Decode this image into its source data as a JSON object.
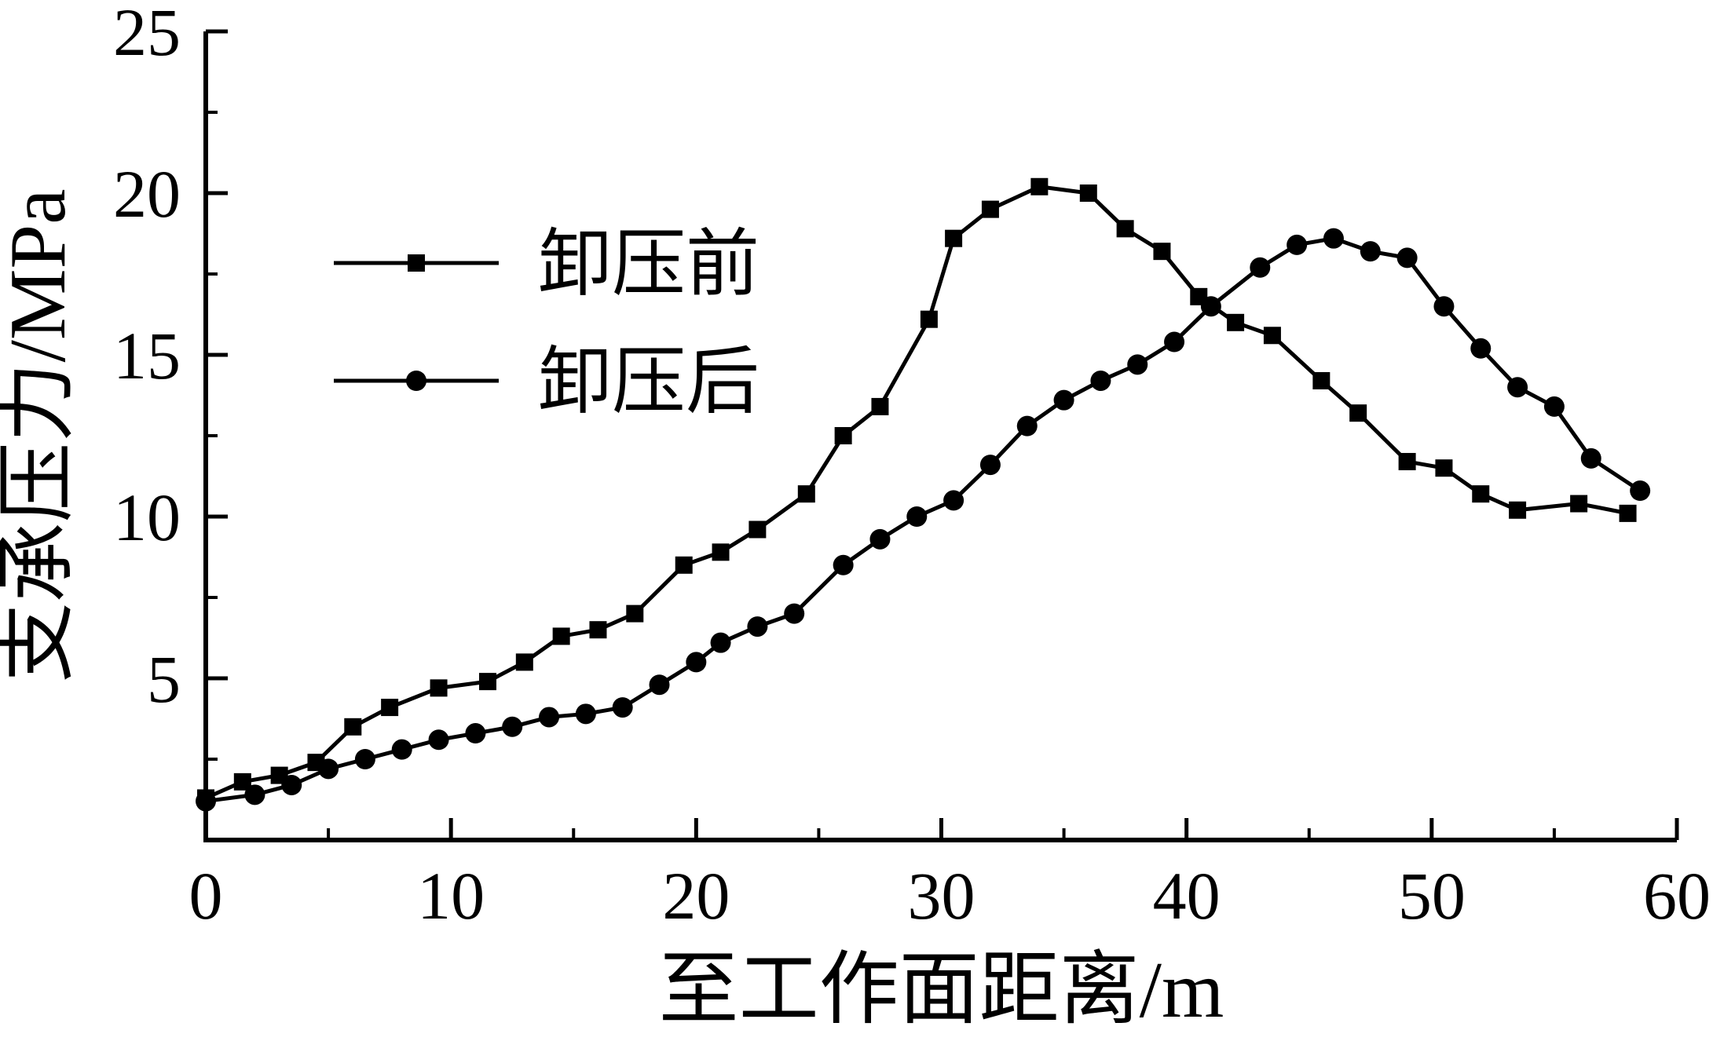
{
  "figure": {
    "background": "#ffffff",
    "axis_color": "#000000"
  },
  "chart_data": {
    "type": "line",
    "title": "",
    "xlabel": "至工作面距离/m",
    "ylabel": "支承压力/MPa",
    "xlim": [
      0,
      60
    ],
    "ylim": [
      0,
      25
    ],
    "grid": false,
    "legend_position": "upper-left-inside",
    "x_major_ticks": [
      0,
      10,
      20,
      30,
      40,
      50,
      60
    ],
    "x_minor_ticks": [
      5,
      15,
      25,
      35,
      45,
      55
    ],
    "y_major_ticks": [
      5,
      10,
      15,
      20,
      25
    ],
    "y_minor_ticks": [
      2.5,
      7.5,
      12.5,
      17.5,
      22.5
    ],
    "series": [
      {
        "name": "卸压前",
        "marker": "square",
        "color": "#000000",
        "points": [
          [
            0,
            1.3
          ],
          [
            1.5,
            1.8
          ],
          [
            3,
            2.0
          ],
          [
            4.5,
            2.4
          ],
          [
            6,
            3.5
          ],
          [
            7.5,
            4.1
          ],
          [
            9.5,
            4.7
          ],
          [
            11.5,
            4.9
          ],
          [
            13,
            5.5
          ],
          [
            14.5,
            6.3
          ],
          [
            16,
            6.5
          ],
          [
            17.5,
            7.0
          ],
          [
            19.5,
            8.5
          ],
          [
            21,
            8.9
          ],
          [
            22.5,
            9.6
          ],
          [
            24.5,
            10.7
          ],
          [
            26,
            12.5
          ],
          [
            27.5,
            13.4
          ],
          [
            29.5,
            16.1
          ],
          [
            30.5,
            18.6
          ],
          [
            32,
            19.5
          ],
          [
            34,
            20.2
          ],
          [
            36,
            20.0
          ],
          [
            37.5,
            18.9
          ],
          [
            39,
            18.2
          ],
          [
            40.5,
            16.8
          ],
          [
            42,
            16.0
          ],
          [
            43.5,
            15.6
          ],
          [
            45.5,
            14.2
          ],
          [
            47,
            13.2
          ],
          [
            49,
            11.7
          ],
          [
            50.5,
            11.5
          ],
          [
            52,
            10.7
          ],
          [
            53.5,
            10.2
          ],
          [
            56,
            10.4
          ],
          [
            58,
            10.1
          ]
        ]
      },
      {
        "name": "卸压后",
        "marker": "circle",
        "color": "#000000",
        "points": [
          [
            0,
            1.2
          ],
          [
            2,
            1.4
          ],
          [
            3.5,
            1.7
          ],
          [
            5,
            2.2
          ],
          [
            6.5,
            2.5
          ],
          [
            8,
            2.8
          ],
          [
            9.5,
            3.1
          ],
          [
            11,
            3.3
          ],
          [
            12.5,
            3.5
          ],
          [
            14,
            3.8
          ],
          [
            15.5,
            3.9
          ],
          [
            17,
            4.1
          ],
          [
            18.5,
            4.8
          ],
          [
            20,
            5.5
          ],
          [
            21,
            6.1
          ],
          [
            22.5,
            6.6
          ],
          [
            24,
            7.0
          ],
          [
            26,
            8.5
          ],
          [
            27.5,
            9.3
          ],
          [
            29,
            10.0
          ],
          [
            30.5,
            10.5
          ],
          [
            32,
            11.6
          ],
          [
            33.5,
            12.8
          ],
          [
            35,
            13.6
          ],
          [
            36.5,
            14.2
          ],
          [
            38,
            14.7
          ],
          [
            39.5,
            15.4
          ],
          [
            41,
            16.5
          ],
          [
            43,
            17.7
          ],
          [
            44.5,
            18.4
          ],
          [
            46,
            18.6
          ],
          [
            47.5,
            18.2
          ],
          [
            49,
            18.0
          ],
          [
            50.5,
            16.5
          ],
          [
            52,
            15.2
          ],
          [
            53.5,
            14.0
          ],
          [
            55,
            13.4
          ],
          [
            56.5,
            11.8
          ],
          [
            58.5,
            10.8
          ]
        ]
      }
    ]
  }
}
